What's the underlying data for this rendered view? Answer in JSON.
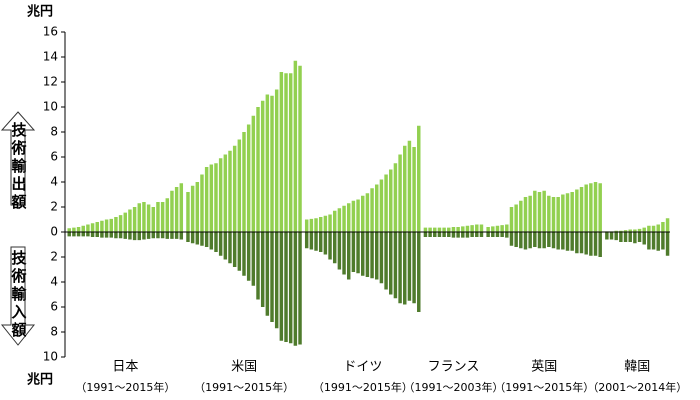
{
  "chart_data": {
    "type": "bar",
    "y_unit": "兆円",
    "export_label": "技術輸出額",
    "import_label": "技術輸入額",
    "export_color": "#92d050",
    "import_color": "#4f7b2c",
    "ylim": [
      -10,
      16
    ],
    "yticks": [
      16,
      14,
      12,
      10,
      8,
      6,
      4,
      2,
      0,
      {
        "value": -2,
        "label": "2"
      },
      {
        "value": -4,
        "label": "4"
      },
      {
        "value": -6,
        "label": "6"
      },
      {
        "value": -8,
        "label": "8"
      },
      {
        "value": -10,
        "label": "10"
      }
    ],
    "groups": [
      {
        "name": "日本",
        "period": "（1991～2015年）",
        "exports": [
          0.3,
          0.35,
          0.4,
          0.5,
          0.6,
          0.7,
          0.8,
          0.9,
          1.0,
          1.05,
          1.2,
          1.35,
          1.55,
          1.8,
          2.0,
          2.3,
          2.4,
          2.2,
          2.0,
          2.4,
          2.4,
          2.7,
          3.3,
          3.6,
          3.9
        ],
        "imports": [
          -0.35,
          -0.35,
          -0.35,
          -0.35,
          -0.35,
          -0.4,
          -0.4,
          -0.45,
          -0.45,
          -0.45,
          -0.5,
          -0.5,
          -0.55,
          -0.6,
          -0.65,
          -0.65,
          -0.6,
          -0.55,
          -0.5,
          -0.5,
          -0.5,
          -0.55,
          -0.55,
          -0.55,
          -0.6
        ]
      },
      {
        "name": "米国",
        "period": "（1991～2015年）",
        "exports": [
          3.2,
          3.7,
          4.0,
          4.6,
          5.2,
          5.4,
          5.5,
          5.9,
          6.2,
          6.5,
          6.9,
          7.4,
          8.0,
          8.6,
          9.3,
          10.0,
          10.5,
          11.0,
          10.9,
          11.4,
          12.8,
          12.7,
          12.7,
          13.7,
          13.3
        ],
        "imports": [
          -0.8,
          -0.9,
          -1.0,
          -1.1,
          -1.2,
          -1.4,
          -1.6,
          -1.9,
          -2.2,
          -2.5,
          -2.8,
          -3.1,
          -3.5,
          -3.9,
          -4.3,
          -5.4,
          -6.0,
          -6.7,
          -7.2,
          -7.7,
          -8.7,
          -8.8,
          -8.9,
          -9.1,
          -9.0
        ]
      },
      {
        "name": "ドイツ",
        "period": "（1991～2015年）",
        "exports": [
          1.0,
          1.05,
          1.1,
          1.2,
          1.3,
          1.4,
          1.7,
          1.9,
          2.1,
          2.3,
          2.5,
          2.6,
          2.9,
          3.1,
          3.5,
          3.8,
          4.2,
          4.6,
          5.0,
          5.5,
          6.2,
          6.9,
          7.3,
          6.8,
          8.5
        ],
        "imports": [
          -1.3,
          -1.4,
          -1.5,
          -1.6,
          -1.8,
          -2.2,
          -2.5,
          -3.0,
          -3.4,
          -3.8,
          -3.2,
          -3.3,
          -3.5,
          -3.6,
          -3.7,
          -3.8,
          -4.1,
          -4.6,
          -5.0,
          -5.3,
          -5.7,
          -5.8,
          -5.5,
          -5.7,
          -6.4
        ]
      },
      {
        "name": "フランス",
        "period": "（1991～2003年）",
        "exports": [
          0.35,
          0.35,
          0.35,
          0.35,
          0.35,
          0.35,
          0.4,
          0.4,
          0.45,
          0.5,
          0.55,
          0.6,
          0.6
        ],
        "imports": [
          -0.4,
          -0.4,
          -0.4,
          -0.4,
          -0.4,
          -0.4,
          -0.45,
          -0.45,
          -0.45,
          -0.45,
          -0.4,
          -0.4,
          -0.4
        ]
      },
      {
        "name": "英国",
        "period": "（1991～2015年）",
        "exports": [
          0.4,
          0.45,
          0.5,
          0.55,
          0.6,
          2.0,
          2.2,
          2.5,
          2.8,
          2.9,
          3.3,
          3.2,
          3.3,
          2.9,
          2.8,
          2.8,
          3.0,
          3.1,
          3.2,
          3.4,
          3.6,
          3.8,
          3.9,
          4.0,
          3.9
        ],
        "imports": [
          -0.4,
          -0.4,
          -0.4,
          -0.4,
          -0.45,
          -1.1,
          -1.2,
          -1.3,
          -1.4,
          -1.3,
          -1.2,
          -1.3,
          -1.3,
          -1.2,
          -1.3,
          -1.4,
          -1.4,
          -1.5,
          -1.5,
          -1.7,
          -1.7,
          -1.8,
          -1.9,
          -1.9,
          -2.0
        ]
      },
      {
        "name": "韓国",
        "period": "（2001～2014年）",
        "exports": [
          0.05,
          0.05,
          0.1,
          0.1,
          0.15,
          0.2,
          0.2,
          0.25,
          0.35,
          0.5,
          0.5,
          0.6,
          0.8,
          1.1
        ],
        "imports": [
          -0.6,
          -0.6,
          -0.65,
          -0.8,
          -0.8,
          -0.8,
          -0.9,
          -0.8,
          -1.0,
          -1.4,
          -1.4,
          -1.5,
          -1.4,
          -1.9
        ]
      }
    ]
  }
}
